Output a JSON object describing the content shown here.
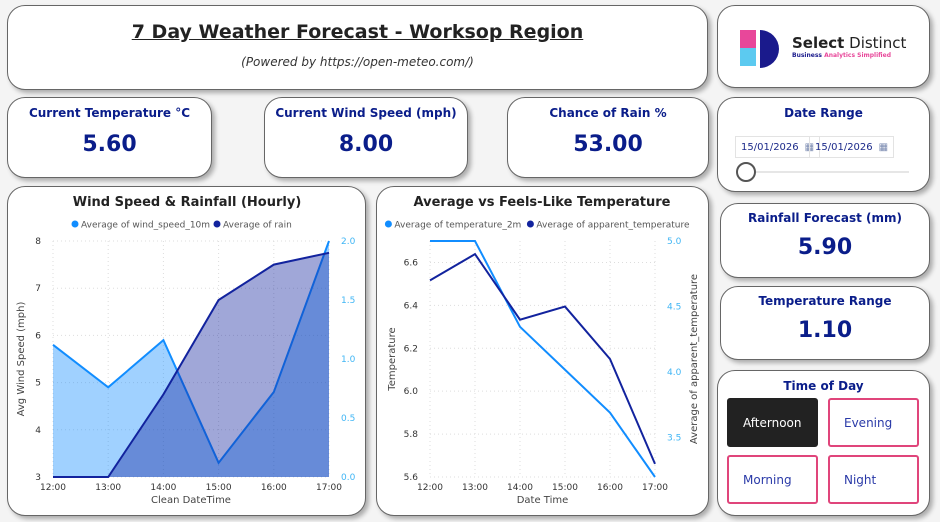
{
  "header": {
    "title": "7 Day Weather Forecast - Worksop Region",
    "subtitle": "(Powered by https://open-meteo.com/)"
  },
  "logo": {
    "brand1": "Select",
    "brand2": "Distinct",
    "tagline1": "Business",
    "tagline2": "Analytics Simplified",
    "colors": {
      "pink": "#e8479a",
      "blue": "#5ccaf0",
      "navy": "#1a1a8c"
    }
  },
  "kpis": [
    {
      "label": "Current Temperature °C",
      "value": "5.60"
    },
    {
      "label": "Current Wind Speed (mph)",
      "value": "8.00"
    },
    {
      "label": "Chance of Rain %",
      "value": "53.00"
    },
    {
      "label": "Rainfall Forecast (mm)",
      "value": "5.90"
    },
    {
      "label": "Temperature Range",
      "value": "1.10"
    }
  ],
  "date_range": {
    "label": "Date Range",
    "start": "15/01/2026",
    "end": "15/01/2026",
    "slider_position": 0
  },
  "time_of_day": {
    "label": "Time of Day",
    "options": [
      {
        "label": "Afternoon",
        "selected": true
      },
      {
        "label": "Evening",
        "selected": false
      },
      {
        "label": "Morning",
        "selected": false
      },
      {
        "label": "Night",
        "selected": false
      }
    ],
    "accent": "#e0457b"
  },
  "chart_data": [
    {
      "type": "area",
      "title": "Wind Speed & Rainfall (Hourly)",
      "xlabel": "Clean DateTime",
      "ylabel": "Avg Wind Speed (mph)",
      "y2label": "",
      "categories": [
        "12:00",
        "13:00",
        "14:00",
        "15:00",
        "16:00",
        "17:00"
      ],
      "ylim": [
        3,
        8
      ],
      "yticks": [
        "3",
        "4",
        "5",
        "6",
        "7",
        "8"
      ],
      "y2lim": [
        0,
        2
      ],
      "y2ticks": [
        "0.0",
        "0.5",
        "1.0",
        "1.5",
        "2.0"
      ],
      "legend": "top",
      "grid": true,
      "series": [
        {
          "name": "Average of wind_speed_10m",
          "axis": "left",
          "values": [
            5.8,
            4.9,
            5.9,
            3.3,
            4.8,
            8.0
          ],
          "color": "#118dff"
        },
        {
          "name": "Average of rain",
          "axis": "right",
          "values": [
            0,
            0,
            0.7,
            1.5,
            1.8,
            1.9
          ],
          "color": "#12239e"
        }
      ]
    },
    {
      "type": "line",
      "title": "Average vs Feels-Like Temperature",
      "xlabel": "Date Time",
      "ylabel": "Temperature",
      "y2label": "Average of apparent_temperature",
      "categories": [
        "12:00",
        "13:00",
        "14:00",
        "15:00",
        "16:00",
        "17:00"
      ],
      "ylim": [
        5.6,
        6.7
      ],
      "yticks": [
        "5.6",
        "5.8",
        "6.0",
        "6.2",
        "6.4",
        "6.6"
      ],
      "y2lim": [
        3.2,
        5.0
      ],
      "y2ticks": [
        "3.5",
        "4.0",
        "4.5",
        "5.0"
      ],
      "legend": "top",
      "grid": true,
      "series": [
        {
          "name": "Average of temperature_2m",
          "axis": "left",
          "values": [
            6.7,
            6.7,
            6.3,
            6.1,
            5.9,
            5.6
          ],
          "color": "#118dff"
        },
        {
          "name": "Average of apparent_temperature",
          "axis": "right",
          "values": [
            4.7,
            4.9,
            4.4,
            4.5,
            4.1,
            3.3
          ],
          "color": "#12239e"
        }
      ]
    }
  ]
}
